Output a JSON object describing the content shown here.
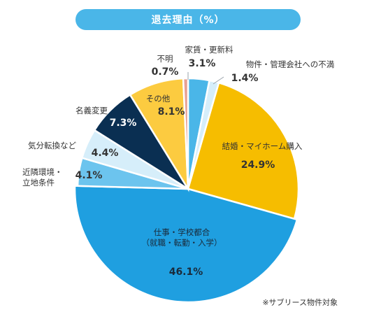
{
  "title": "退去理由（%）",
  "footnote": "※サブリース物件対象",
  "chart_data": {
    "type": "pie",
    "title": "退去理由（%）",
    "unit": "%",
    "slices": [
      {
        "label": "家賃・更新料",
        "value": 3.1,
        "value_label": "3.1%",
        "color": "#4ab6e8",
        "label_color": "#333333"
      },
      {
        "label": "物件・管理会社への不満",
        "value": 1.4,
        "value_label": "1.4%",
        "color": "#d6eefa",
        "label_color": "#333333"
      },
      {
        "label": "結婚・マイホーム購入",
        "value": 24.9,
        "value_label": "24.9%",
        "color": "#f6bd00",
        "label_color": "#333333"
      },
      {
        "label": "仕事・学校都合（就職・転勤・入学）",
        "label_lines": [
          "仕事・学校都合",
          "（就職・転勤・入学）"
        ],
        "value": 46.1,
        "value_label": "46.1%",
        "color": "#1f9fe0",
        "label_color": "#1a2a3a"
      },
      {
        "label": "近隣環境・立地条件",
        "label_lines": [
          "近隣環境・",
          "立地条件"
        ],
        "value": 4.1,
        "value_label": "4.1%",
        "color": "#6cc4ee",
        "label_color": "#333333"
      },
      {
        "label": "気分転換など",
        "value": 4.4,
        "value_label": "4.4%",
        "color": "#d6eefa",
        "label_color": "#333333"
      },
      {
        "label": "名義変更",
        "value": 7.3,
        "value_label": "7.3%",
        "color": "#0a2f52",
        "label_color": "#ffffff"
      },
      {
        "label": "その他",
        "value": 8.1,
        "value_label": "8.1%",
        "color": "#fccb40",
        "label_color": "#333333"
      },
      {
        "label": "不明",
        "value": 0.7,
        "value_label": "0.7%",
        "color": "#e8a092",
        "label_color": "#333333"
      }
    ]
  }
}
